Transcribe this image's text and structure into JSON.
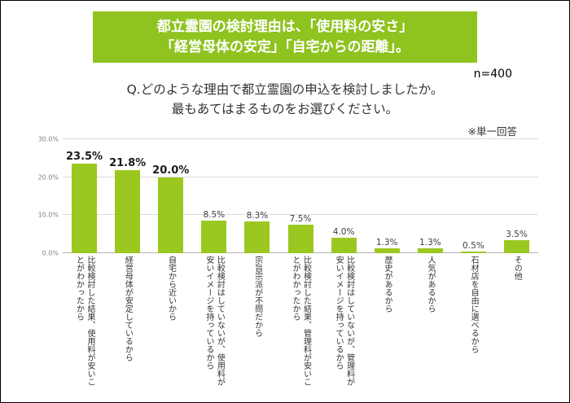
{
  "header": {
    "line1": "都立霊園の検討理由は、「使用料の安さ」",
    "line2": "「経営母体の安定」「自宅からの距離」。",
    "bg_color": "#8FC31F"
  },
  "sample_size": "n=400",
  "question": {
    "line1": "Q.どのような理由で都立霊園の申込を検討しましたか。",
    "line2": "最もあてはまるものをお選びください。"
  },
  "note": "※単一回答",
  "chart_data": {
    "type": "bar",
    "categories": [
      "比較検討した結果、使用料が安いことがわかったから",
      "経営母体が安定しているから",
      "自宅から近いから",
      "比較検討はしていないが、使用料が安いイメージを持っているから",
      "宗旨宗派が不問だから",
      "比較検討した結果、管理料が安いことがわかったから",
      "比較検討はしていないが、管理料が安いイメージを持っているから",
      "歴史があるから",
      "人気があるから",
      "石材店を自由に選べるから",
      "その他"
    ],
    "values": [
      23.5,
      21.8,
      20.0,
      8.5,
      8.3,
      7.5,
      4.0,
      1.3,
      1.3,
      0.5,
      3.5
    ],
    "value_labels": [
      "23.5%",
      "21.8%",
      "20.0%",
      "8.5%",
      "8.3%",
      "7.5%",
      "4.0%",
      "1.3%",
      "1.3%",
      "0.5%",
      "3.5%"
    ],
    "bar_color": "#9BC820",
    "ylim": [
      0,
      30
    ],
    "yticks": [
      {
        "value": 0,
        "label": "0.0%"
      },
      {
        "value": 10,
        "label": "10.0%"
      },
      {
        "value": 20,
        "label": "20.0%"
      },
      {
        "value": 30,
        "label": "30.0%"
      }
    ],
    "grid": true,
    "legend": "none",
    "xlabel": "",
    "ylabel": ""
  }
}
